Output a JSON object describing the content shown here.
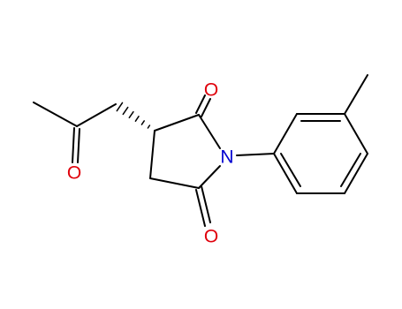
{
  "atoms": [
    {
      "label": "O"
    },
    {
      "label": "O"
    },
    {
      "label": "O"
    },
    {
      "label": "N"
    }
  ]
}
